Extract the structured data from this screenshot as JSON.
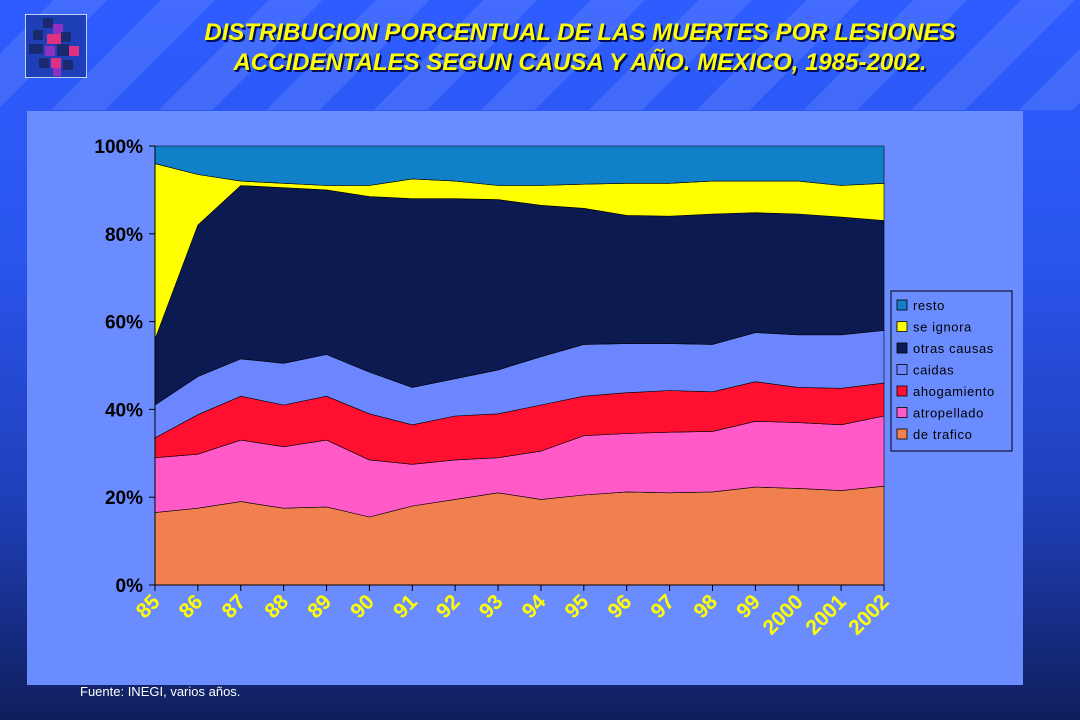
{
  "slide": {
    "title_line1": "DISTRIBUCION PORCENTUAL DE LAS MUERTES POR LESIONES",
    "title_line2": "ACCIDENTALES SEGUN CAUSA Y AÑO. MEXICO, 1985-2002.",
    "source": "Fuente: INEGI, varios años.",
    "logo_icon": "institution-logo-icon"
  },
  "chart_data": {
    "type": "area",
    "stacked": true,
    "percent": true,
    "categories": [
      "85",
      "86",
      "87",
      "88",
      "89",
      "90",
      "91",
      "92",
      "93",
      "94",
      "95",
      "96",
      "97",
      "98",
      "99",
      "2000",
      "2001",
      "2002"
    ],
    "y_ticks": [
      "0%",
      "20%",
      "40%",
      "60%",
      "80%",
      "100%"
    ],
    "ylim": [
      0,
      100
    ],
    "legend_position": "right",
    "grid": false,
    "series": [
      {
        "name": "de trafico",
        "color": "#f08050",
        "values": [
          16.5,
          17.5,
          19,
          17.5,
          17.8,
          15.5,
          18,
          19.5,
          21,
          19.5,
          20.5,
          21.2,
          21,
          21.2,
          22.3,
          22,
          21.5,
          22.5
        ]
      },
      {
        "name": "atropellado",
        "color": "#ff5ac8",
        "values": [
          12.5,
          12.3,
          14,
          14,
          15.2,
          13,
          9.5,
          9,
          8,
          11,
          13.5,
          13.3,
          13.8,
          13.8,
          15,
          15,
          15,
          16
        ]
      },
      {
        "name": "ahogamiento",
        "color": "#ff1030",
        "values": [
          4.5,
          9,
          10,
          9.5,
          10,
          10.5,
          9,
          10,
          10,
          10.5,
          9,
          9.3,
          9.5,
          9,
          9,
          8,
          8.3,
          7.5
        ]
      },
      {
        "name": "caidas",
        "color": "#6b86ff",
        "values": [
          7.5,
          8.7,
          8.5,
          9.5,
          9.5,
          9.5,
          8.5,
          8.5,
          10,
          11,
          11.8,
          11.2,
          10.7,
          10.8,
          11.2,
          12,
          12.2,
          12
        ]
      },
      {
        "name": "otras causas",
        "color": "#0c1a52",
        "values": [
          15,
          34.5,
          39.5,
          40,
          37.5,
          40,
          43,
          41,
          38.8,
          34.5,
          31,
          29.2,
          29,
          29.7,
          27.3,
          27.5,
          26.8,
          25
        ]
      },
      {
        "name": "se ignora",
        "color": "#ffff00",
        "values": [
          40,
          11.5,
          1,
          1,
          1,
          2.5,
          4.5,
          4,
          3.2,
          4.5,
          5.5,
          7.3,
          7.5,
          7.5,
          7.2,
          7.5,
          7.2,
          8.5
        ]
      },
      {
        "name": "resto",
        "color": "#1080c8",
        "values": [
          4,
          6.5,
          8,
          8.5,
          9,
          9,
          7.5,
          8,
          9,
          9,
          8.7,
          8.5,
          8.5,
          8,
          8,
          8,
          9,
          8.5
        ]
      }
    ]
  }
}
